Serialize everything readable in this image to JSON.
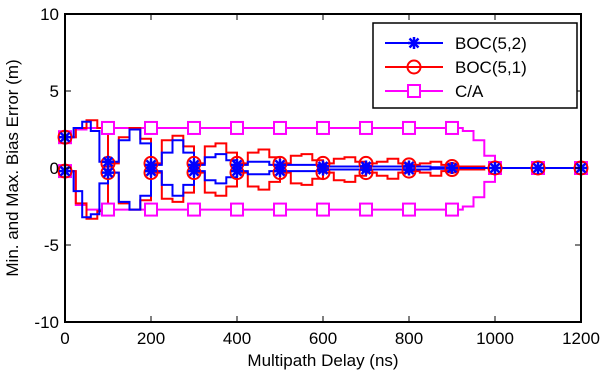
{
  "chart_data": {
    "type": "line",
    "title": "",
    "xlabel": "Multipath Delay (ns)",
    "ylabel": "Min. and Max. Bias Error (m)",
    "xlim": [
      0,
      1200
    ],
    "ylim": [
      -10,
      10
    ],
    "xticks": [
      "0",
      "200",
      "400",
      "600",
      "800",
      "1000",
      "1200"
    ],
    "yticks": [
      "10",
      "5",
      "0",
      "-5",
      "-10"
    ],
    "grid": false,
    "legend_position": "top-right",
    "series": [
      {
        "name": "BOC(5,2)",
        "color": "#0000ff",
        "marker": "asterisk",
        "markers_x": [
          0,
          100,
          200,
          300,
          400,
          500,
          600,
          700,
          800,
          900,
          1000,
          1100,
          1200
        ],
        "x": [
          0,
          20,
          40,
          60,
          80,
          100,
          125,
          150,
          175,
          200,
          225,
          250,
          275,
          300,
          325,
          350,
          375,
          400,
          425,
          450,
          475,
          500,
          550,
          600,
          650,
          700,
          750,
          800,
          850,
          900,
          950,
          1000,
          1050,
          1100,
          1150,
          1200
        ],
        "max": [
          2.0,
          2.6,
          3.0,
          2.4,
          0.4,
          0.4,
          1.8,
          2.5,
          1.6,
          0.2,
          1.0,
          1.8,
          1.0,
          0.2,
          0.7,
          0.9,
          0.5,
          0.2,
          0.4,
          0.4,
          0.2,
          0.2,
          0.2,
          0.1,
          0.1,
          0.1,
          0.1,
          0.1,
          0.05,
          0,
          0,
          0,
          0,
          0,
          0,
          0
        ],
        "min": [
          -0.2,
          -1.5,
          -3.2,
          -3.0,
          -1.0,
          -0.3,
          -2.2,
          -2.7,
          -1.8,
          -0.2,
          -1.1,
          -1.8,
          -1.1,
          -0.2,
          -0.8,
          -1.0,
          -0.6,
          -0.2,
          -0.4,
          -0.4,
          -0.2,
          -0.2,
          -0.2,
          -0.1,
          -0.1,
          -0.1,
          -0.1,
          -0.1,
          -0.05,
          0,
          0,
          0,
          0,
          0,
          0,
          0
        ]
      },
      {
        "name": "BOC(5,1)",
        "color": "#ff0000",
        "marker": "circle",
        "markers_x": [
          0,
          100,
          200,
          300,
          400,
          500,
          600,
          700,
          800,
          900,
          1000,
          1100,
          1200
        ],
        "x": [
          0,
          25,
          50,
          75,
          100,
          125,
          150,
          175,
          200,
          225,
          250,
          275,
          300,
          325,
          350,
          375,
          400,
          425,
          450,
          475,
          500,
          525,
          550,
          575,
          600,
          625,
          650,
          675,
          700,
          725,
          750,
          775,
          800,
          825,
          850,
          875,
          900,
          925,
          950,
          975,
          1000,
          1050,
          1100,
          1150,
          1200
        ],
        "max": [
          2.0,
          2.6,
          3.1,
          2.6,
          0.3,
          2.0,
          2.6,
          1.9,
          0.3,
          1.8,
          2.1,
          1.4,
          0.3,
          1.4,
          1.6,
          1.0,
          0.3,
          1.0,
          1.2,
          0.7,
          0.3,
          0.8,
          0.9,
          0.5,
          0.3,
          0.6,
          0.7,
          0.4,
          0.3,
          0.4,
          0.6,
          0.3,
          0.2,
          0.3,
          0.4,
          0.2,
          0.1,
          0.1,
          0.1,
          0,
          0,
          0,
          0,
          0,
          0
        ],
        "min": [
          -0.2,
          -2.3,
          -3.3,
          -2.8,
          -0.3,
          -2.3,
          -2.7,
          -2.1,
          -0.3,
          -2.0,
          -2.2,
          -1.6,
          -0.3,
          -1.6,
          -1.8,
          -1.2,
          -0.3,
          -1.2,
          -1.4,
          -0.9,
          -0.3,
          -1.0,
          -1.1,
          -0.7,
          -0.3,
          -0.8,
          -0.9,
          -0.5,
          -0.3,
          -0.5,
          -0.7,
          -0.3,
          -0.2,
          -0.3,
          -0.5,
          -0.2,
          -0.1,
          -0.1,
          -0.1,
          0,
          0,
          0,
          0,
          0,
          0
        ]
      },
      {
        "name": "C/A",
        "color": "#ff00ff",
        "marker": "square",
        "markers_x": [
          0,
          100,
          200,
          300,
          400,
          500,
          600,
          700,
          800,
          900,
          1000,
          1100,
          1200
        ],
        "x": [
          0,
          25,
          50,
          100,
          200,
          300,
          400,
          500,
          600,
          700,
          800,
          900,
          925,
          950,
          975,
          1000,
          1050,
          1100,
          1150,
          1200
        ],
        "max": [
          2.0,
          2.5,
          2.6,
          2.6,
          2.6,
          2.6,
          2.6,
          2.6,
          2.6,
          2.6,
          2.6,
          2.6,
          2.4,
          1.8,
          0.8,
          0,
          0,
          0,
          0,
          0
        ],
        "min": [
          -0.2,
          -2.4,
          -2.7,
          -2.7,
          -2.7,
          -2.7,
          -2.7,
          -2.7,
          -2.7,
          -2.7,
          -2.7,
          -2.7,
          -2.5,
          -1.9,
          -0.9,
          0,
          0,
          0,
          0,
          0
        ]
      }
    ]
  }
}
